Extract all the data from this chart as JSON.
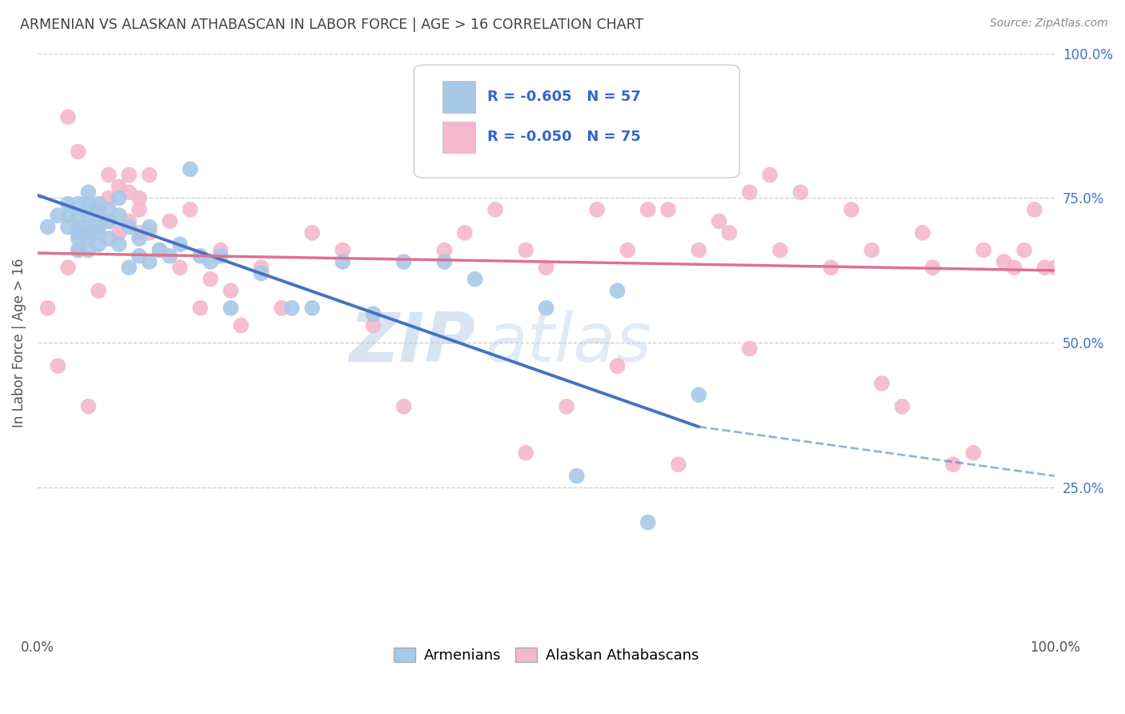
{
  "title": "ARMENIAN VS ALASKAN ATHABASCAN IN LABOR FORCE | AGE > 16 CORRELATION CHART",
  "source": "Source: ZipAtlas.com",
  "ylabel": "In Labor Force | Age > 16",
  "xlim": [
    0.0,
    1.0
  ],
  "ylim": [
    0.0,
    1.0
  ],
  "legend_r_armenian": "-0.605",
  "legend_n_armenian": "57",
  "legend_r_athabascan": "-0.050",
  "legend_n_athabascan": "75",
  "color_armenian": "#a8c8e8",
  "color_athabascan": "#f4b8cc",
  "line_color_armenian": "#4472c4",
  "line_color_athabascan": "#e07090",
  "watermark_zip": "ZIP",
  "watermark_atlas": "atlas",
  "background_color": "#ffffff",
  "grid_color": "#cccccc",
  "title_color": "#404040",
  "source_color": "#888888",
  "armenian_x": [
    0.01,
    0.02,
    0.03,
    0.03,
    0.03,
    0.04,
    0.04,
    0.04,
    0.04,
    0.04,
    0.04,
    0.05,
    0.05,
    0.05,
    0.05,
    0.05,
    0.05,
    0.05,
    0.05,
    0.06,
    0.06,
    0.06,
    0.06,
    0.06,
    0.07,
    0.07,
    0.07,
    0.08,
    0.08,
    0.08,
    0.09,
    0.09,
    0.1,
    0.1,
    0.11,
    0.11,
    0.12,
    0.13,
    0.14,
    0.15,
    0.16,
    0.17,
    0.18,
    0.19,
    0.22,
    0.25,
    0.27,
    0.3,
    0.33,
    0.36,
    0.4,
    0.43,
    0.5,
    0.53,
    0.57,
    0.6,
    0.65
  ],
  "armenian_y": [
    0.7,
    0.72,
    0.74,
    0.72,
    0.7,
    0.74,
    0.72,
    0.7,
    0.69,
    0.68,
    0.66,
    0.76,
    0.74,
    0.73,
    0.72,
    0.7,
    0.69,
    0.68,
    0.66,
    0.74,
    0.72,
    0.7,
    0.69,
    0.67,
    0.73,
    0.71,
    0.68,
    0.75,
    0.72,
    0.67,
    0.7,
    0.63,
    0.68,
    0.65,
    0.7,
    0.64,
    0.66,
    0.65,
    0.67,
    0.8,
    0.65,
    0.64,
    0.65,
    0.56,
    0.62,
    0.56,
    0.56,
    0.64,
    0.55,
    0.64,
    0.64,
    0.61,
    0.56,
    0.27,
    0.59,
    0.19,
    0.41
  ],
  "athabascan_x": [
    0.01,
    0.02,
    0.03,
    0.03,
    0.04,
    0.04,
    0.05,
    0.05,
    0.06,
    0.06,
    0.07,
    0.07,
    0.07,
    0.08,
    0.08,
    0.09,
    0.09,
    0.09,
    0.1,
    0.1,
    0.1,
    0.11,
    0.11,
    0.12,
    0.13,
    0.14,
    0.15,
    0.16,
    0.17,
    0.18,
    0.19,
    0.2,
    0.22,
    0.24,
    0.27,
    0.3,
    0.33,
    0.36,
    0.4,
    0.42,
    0.45,
    0.48,
    0.5,
    0.52,
    0.55,
    0.58,
    0.6,
    0.62,
    0.65,
    0.67,
    0.68,
    0.7,
    0.72,
    0.73,
    0.75,
    0.78,
    0.8,
    0.82,
    0.83,
    0.85,
    0.87,
    0.88,
    0.9,
    0.92,
    0.93,
    0.95,
    0.96,
    0.97,
    0.98,
    0.99,
    1.0,
    0.48,
    0.57,
    0.63,
    0.7
  ],
  "athabascan_y": [
    0.56,
    0.46,
    0.89,
    0.63,
    0.83,
    0.66,
    0.69,
    0.39,
    0.73,
    0.59,
    0.79,
    0.75,
    0.71,
    0.77,
    0.69,
    0.79,
    0.76,
    0.71,
    0.75,
    0.73,
    0.69,
    0.79,
    0.69,
    0.66,
    0.71,
    0.63,
    0.73,
    0.56,
    0.61,
    0.66,
    0.59,
    0.53,
    0.63,
    0.56,
    0.69,
    0.66,
    0.53,
    0.39,
    0.66,
    0.69,
    0.73,
    0.66,
    0.63,
    0.39,
    0.73,
    0.66,
    0.73,
    0.73,
    0.66,
    0.71,
    0.69,
    0.76,
    0.79,
    0.66,
    0.76,
    0.63,
    0.73,
    0.66,
    0.43,
    0.39,
    0.69,
    0.63,
    0.29,
    0.31,
    0.66,
    0.64,
    0.63,
    0.66,
    0.73,
    0.63,
    0.63,
    0.31,
    0.46,
    0.29,
    0.49
  ],
  "arm_line_x0": 0.0,
  "arm_line_y0": 0.755,
  "arm_line_x1": 0.65,
  "arm_line_y1": 0.355,
  "arm_line_xend": 1.0,
  "arm_line_yend": 0.27,
  "ath_line_x0": 0.0,
  "ath_line_y0": 0.655,
  "ath_line_x1": 1.0,
  "ath_line_y1": 0.625
}
